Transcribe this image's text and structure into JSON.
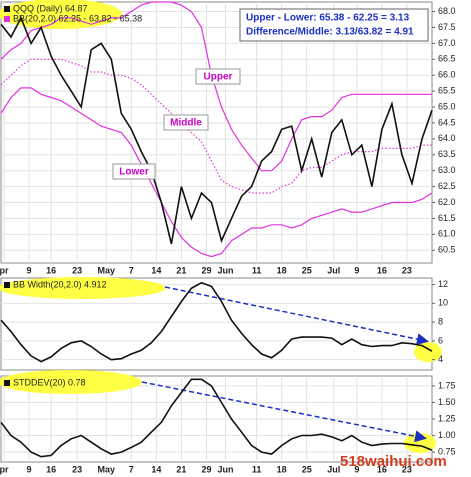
{
  "chart_data": [
    {
      "type": "line",
      "x": [
        0,
        2,
        4,
        6,
        8,
        10,
        12,
        14,
        16,
        18,
        20,
        22,
        24,
        26,
        28,
        30,
        32,
        34,
        36,
        38,
        40,
        42,
        44,
        46,
        48,
        50,
        52,
        54,
        56,
        58,
        60,
        62,
        64,
        66,
        68,
        70,
        72,
        74,
        76,
        78,
        80,
        82,
        84,
        86
      ],
      "series": [
        {
          "name": "BB(20,2.0) 62.25 - 63.82 - 65.38",
          "color": "#e032e0",
          "values": [
            66.5,
            66.8,
            67.0,
            67.4,
            67.5,
            67.6,
            67.8,
            67.8,
            67.7,
            67.6,
            67.7,
            67.8,
            67.8,
            68.0,
            68.2,
            68.3,
            68.3,
            68.3,
            68.2,
            68.0,
            67.5,
            66.0,
            65.0,
            64.3,
            63.8,
            63.4,
            63.0,
            63.0,
            63.3,
            64.0,
            64.6,
            64.7,
            64.7,
            64.9,
            65.3,
            65.4,
            65.4,
            65.4,
            65.4,
            65.4,
            65.4,
            65.4,
            65.4,
            65.4
          ]
        },
        {
          "name": "QQQ (Daily) 64.87",
          "color": "#111111",
          "values": [
            67.6,
            67.2,
            67.8,
            67.0,
            67.5,
            66.6,
            66.0,
            65.5,
            65.0,
            66.8,
            67.0,
            66.5,
            64.8,
            64.3,
            63.6,
            63.0,
            62.0,
            60.7,
            62.5,
            61.5,
            62.3,
            62.0,
            60.8,
            61.5,
            62.2,
            62.5,
            63.3,
            63.6,
            64.3,
            64.4,
            63.0,
            64.0,
            62.8,
            64.2,
            64.6,
            63.5,
            63.8,
            62.5,
            64.3,
            65.1,
            63.5,
            62.6,
            64.0,
            64.9
          ]
        }
      ],
      "bands": [
        {
          "color": "#e032e0",
          "values": [
            64.8,
            65.3,
            65.6,
            65.6,
            65.4,
            65.3,
            65.2,
            65.0,
            64.8,
            64.6,
            64.4,
            64.3,
            64.2,
            63.8,
            63.2,
            62.6,
            62.0,
            61.4,
            60.9,
            60.6,
            60.4,
            60.3,
            60.4,
            60.8,
            61.0,
            61.2,
            61.2,
            61.3,
            61.3,
            61.2,
            61.3,
            61.5,
            61.6,
            61.7,
            61.8,
            61.7,
            61.7,
            61.8,
            61.9,
            62.0,
            62.0,
            62.0,
            62.1,
            62.3
          ]
        },
        {
          "color": "#e032e0",
          "dashed": true,
          "values": [
            65.7,
            66.0,
            66.3,
            66.5,
            66.5,
            66.5,
            66.5,
            66.4,
            66.3,
            66.1,
            66.1,
            66.0,
            66.0,
            65.9,
            65.7,
            65.4,
            65.1,
            64.8,
            64.5,
            64.2,
            63.9,
            63.3,
            62.7,
            62.5,
            62.4,
            62.3,
            62.3,
            62.3,
            62.5,
            62.6,
            63.0,
            63.1,
            63.1,
            63.3,
            63.5,
            63.6,
            63.6,
            63.6,
            63.7,
            63.7,
            63.7,
            63.7,
            63.8,
            63.8
          ]
        }
      ],
      "annotations": [
        "Upper",
        "Middle",
        "Lower"
      ],
      "notes": [
        "Upper - Lower: 65.38 - 62.25 = 3.13",
        "Difference/Middle: 3.13/63.82 = 4.91"
      ],
      "xlim": [
        0,
        86
      ],
      "xticks": [
        {
          "value": 0.6,
          "label": "pr"
        },
        {
          "value": 5.6,
          "label": "9"
        },
        {
          "value": 10,
          "label": "16"
        },
        {
          "value": 15.2,
          "label": "23"
        },
        {
          "value": 21,
          "label": "May"
        },
        {
          "value": 26,
          "label": "7"
        },
        {
          "value": 31,
          "label": "14"
        },
        {
          "value": 36,
          "label": "21"
        },
        {
          "value": 41,
          "label": "29"
        },
        {
          "value": 44.8,
          "label": "Jun"
        },
        {
          "value": 51,
          "label": "11"
        },
        {
          "value": 56,
          "label": "18"
        },
        {
          "value": 61,
          "label": "25"
        },
        {
          "value": 66.4,
          "label": "Jul"
        },
        {
          "value": 71,
          "label": "9"
        },
        {
          "value": 76,
          "label": "16"
        },
        {
          "value": 81,
          "label": "23"
        }
      ],
      "ylim": [
        60.1,
        68.3
      ],
      "yticks": [
        60.5,
        {
          "value": 61,
          "label": "61.0"
        },
        61.5,
        {
          "value": 62,
          "label": "62.0"
        },
        62.5,
        {
          "value": 63,
          "label": "63.0"
        },
        63.5,
        {
          "value": 64,
          "label": "64.0"
        },
        64.5,
        {
          "value": 65,
          "label": "65.0"
        },
        65.5,
        {
          "value": 66,
          "label": "66.0"
        },
        66.5,
        {
          "value": 67,
          "label": "67.0"
        },
        67.5,
        {
          "value": 68,
          "label": "68.0"
        }
      ],
      "grid": true
    },
    {
      "type": "line",
      "x": [
        0,
        2,
        4,
        6,
        8,
        10,
        12,
        14,
        16,
        18,
        20,
        22,
        24,
        26,
        28,
        30,
        32,
        34,
        36,
        38,
        40,
        42,
        44,
        46,
        48,
        50,
        52,
        54,
        56,
        58,
        60,
        62,
        64,
        66,
        68,
        70,
        72,
        74,
        76,
        78,
        80,
        82,
        84,
        86
      ],
      "series": [
        {
          "name": "BB Width(20,2.0) 4.912",
          "color": "#111111",
          "values": [
            8.2,
            7.0,
            5.6,
            4.4,
            3.8,
            4.3,
            5.2,
            5.8,
            6.0,
            5.4,
            4.6,
            4.0,
            4.1,
            4.6,
            5.0,
            5.8,
            7.0,
            8.6,
            10.2,
            11.6,
            12.2,
            11.8,
            10.2,
            8.2,
            6.8,
            5.6,
            4.6,
            4.2,
            5.0,
            6.2,
            6.4,
            6.4,
            6.4,
            6.3,
            5.6,
            6.2,
            5.6,
            5.4,
            5.5,
            5.5,
            5.8,
            5.7,
            5.5,
            4.9
          ]
        }
      ],
      "xlim": [
        0,
        86
      ],
      "ylim": [
        2.9,
        12.7
      ],
      "yticks": [
        4,
        6,
        8,
        10,
        12
      ],
      "grid": true
    },
    {
      "type": "line",
      "x": [
        0,
        2,
        4,
        6,
        8,
        10,
        12,
        14,
        16,
        18,
        20,
        22,
        24,
        26,
        28,
        30,
        32,
        34,
        36,
        38,
        40,
        42,
        44,
        46,
        48,
        50,
        52,
        54,
        56,
        58,
        60,
        62,
        64,
        66,
        68,
        70,
        72,
        74,
        76,
        78,
        80,
        82,
        84,
        86
      ],
      "series": [
        {
          "name": "STDDEV(20) 0.78",
          "color": "#111111",
          "values": [
            1.2,
            1.0,
            0.9,
            0.75,
            0.68,
            0.7,
            0.85,
            0.95,
            1.0,
            0.9,
            0.8,
            0.72,
            0.75,
            0.82,
            0.9,
            1.05,
            1.2,
            1.45,
            1.65,
            1.85,
            1.85,
            1.75,
            1.5,
            1.25,
            1.05,
            0.85,
            0.75,
            0.72,
            0.85,
            0.95,
            1.0,
            1.0,
            1.02,
            0.98,
            0.92,
            1.0,
            0.9,
            0.85,
            0.87,
            0.88,
            0.88,
            0.86,
            0.84,
            0.78
          ]
        }
      ],
      "xlim": [
        0,
        86
      ],
      "xticks": [
        {
          "value": 0.6,
          "label": "pr"
        },
        {
          "value": 5.6,
          "label": "9"
        },
        {
          "value": 10,
          "label": "16"
        },
        {
          "value": 15.2,
          "label": "23"
        },
        {
          "value": 21,
          "label": "May"
        },
        {
          "value": 26,
          "label": "7"
        },
        {
          "value": 31,
          "label": "14"
        },
        {
          "value": 36,
          "label": "21"
        },
        {
          "value": 41,
          "label": "29"
        },
        {
          "value": 44.8,
          "label": "Jun"
        },
        {
          "value": 51,
          "label": "11"
        },
        {
          "value": 56,
          "label": "18"
        },
        {
          "value": 61,
          "label": "25"
        },
        {
          "value": 66.4,
          "label": "Jul"
        },
        {
          "value": 71,
          "label": "9"
        },
        {
          "value": 76,
          "label": "16"
        },
        {
          "value": 81,
          "label": "23"
        }
      ],
      "ylim": [
        0.6,
        1.9
      ],
      "yticks": [
        0.75,
        {
          "value": 1,
          "label": "1.00"
        },
        1.25,
        {
          "value": 1.5,
          "label": "1.50"
        },
        1.75
      ],
      "grid": true
    }
  ],
  "watermark": "518waihui.com"
}
